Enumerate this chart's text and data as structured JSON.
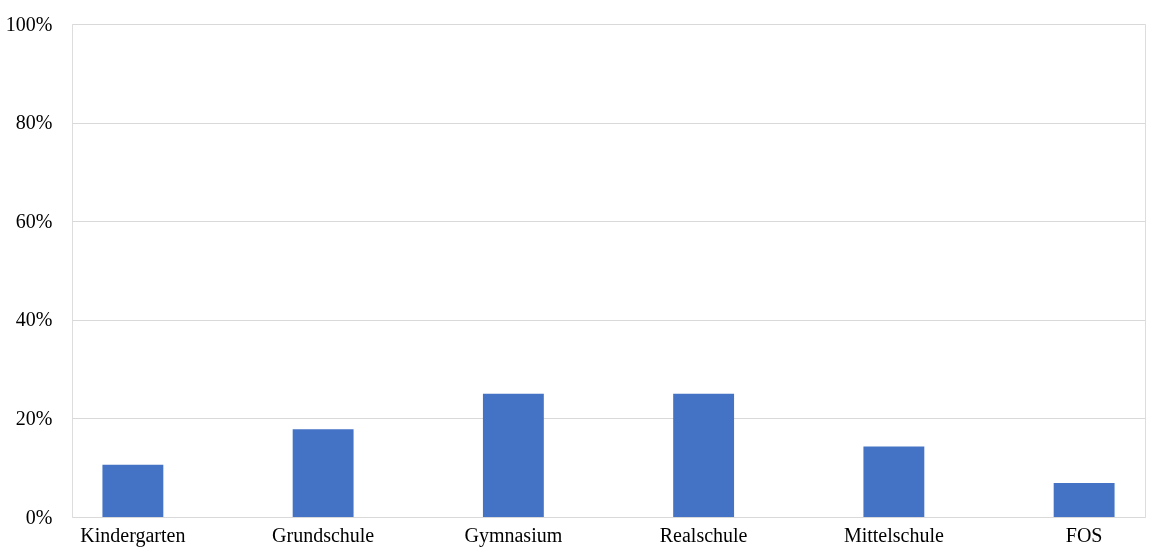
{
  "chart_data": {
    "type": "bar",
    "categories": [
      "Kindergarten",
      "Grundschule",
      "Gymnasium",
      "Realschule",
      "Mittelschule",
      "FOS"
    ],
    "values": [
      10.6,
      17.8,
      25,
      25,
      14.3,
      6.9
    ],
    "color": "#4472c4",
    "ylim": [
      0,
      100
    ],
    "yticks": [
      {
        "value": 0,
        "label": "0%"
      },
      {
        "value": 20,
        "label": "20%"
      },
      {
        "value": 40,
        "label": "40%"
      },
      {
        "value": 60,
        "label": "60%"
      },
      {
        "value": 80,
        "label": "80%"
      },
      {
        "value": 100,
        "label": "100%"
      }
    ],
    "grid": "y"
  }
}
